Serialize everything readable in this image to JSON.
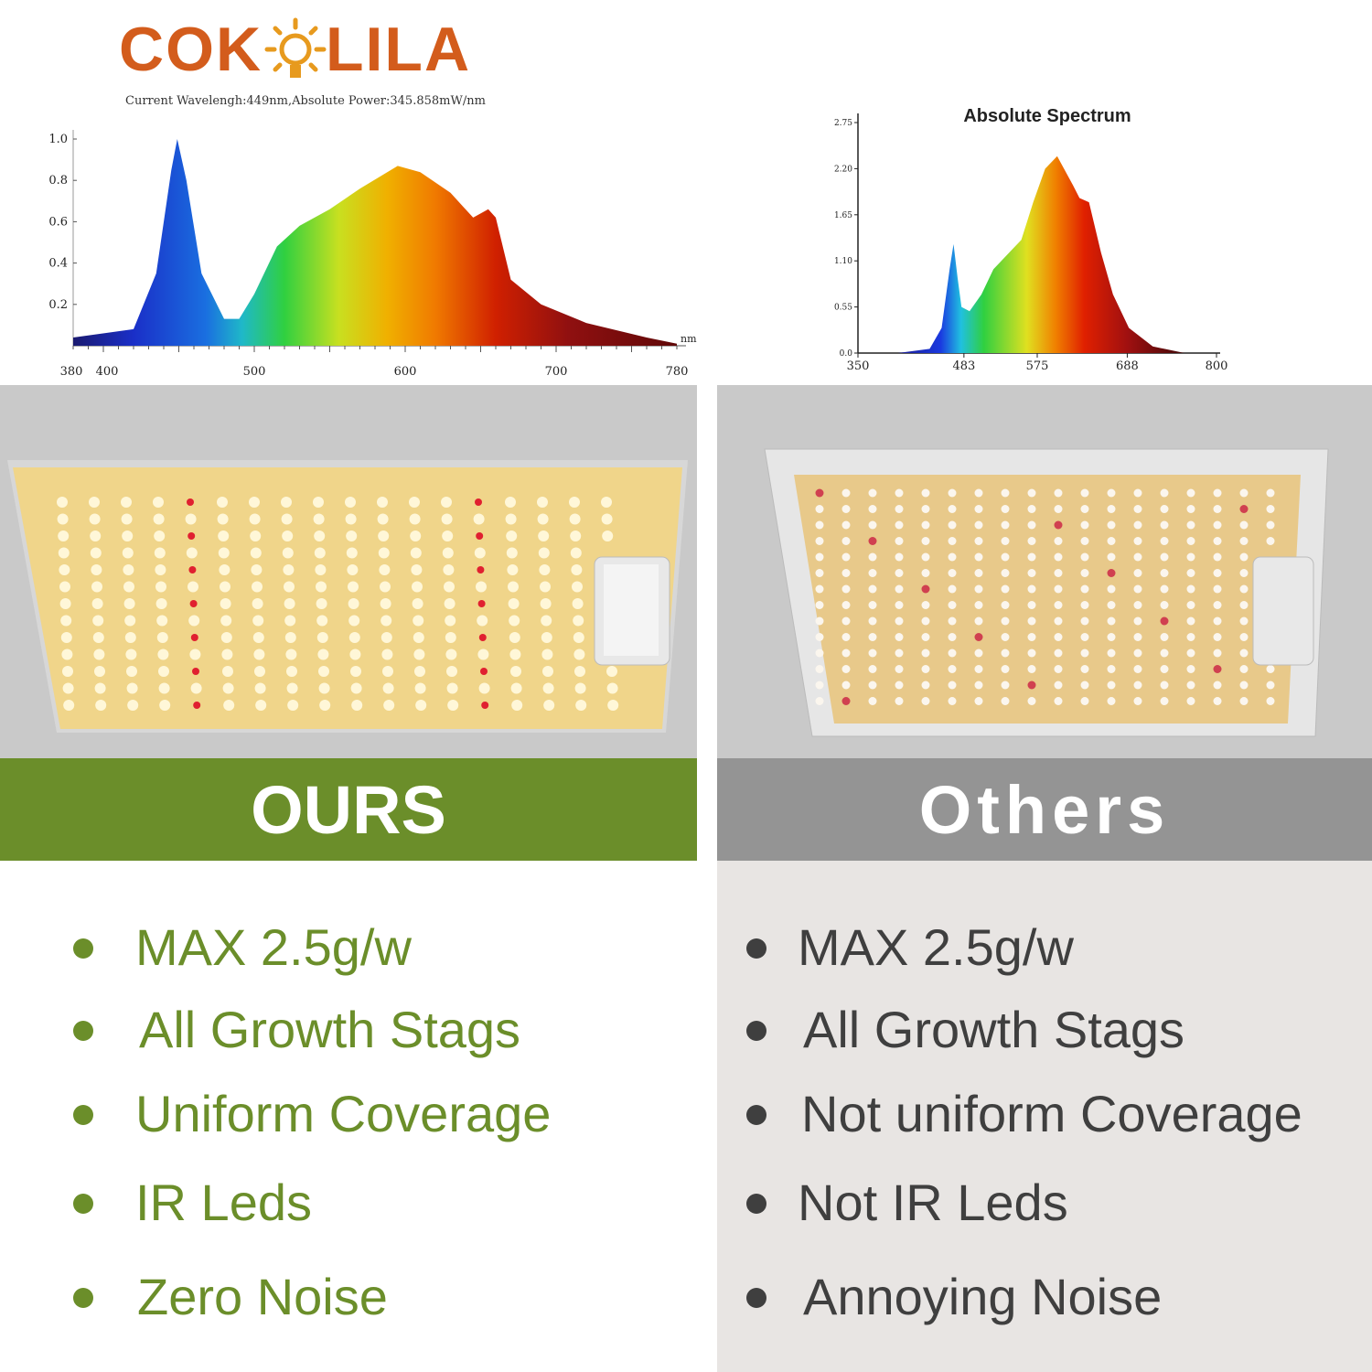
{
  "brand": {
    "name_left": "COK",
    "name_right": "LILA",
    "logo_icon": "sun-bulb-icon",
    "color": "#d35c1c"
  },
  "left_chart": {
    "subtitle": "Current Wavelengh:449nm,Absolute Power:345.858mW/nm",
    "chart_data": {
      "type": "area",
      "title": "",
      "xlabel": "nm",
      "ylabel": "",
      "x_ticks": [
        "380",
        "400",
        "500",
        "600",
        "700",
        "780"
      ],
      "y_ticks": [
        "1.0",
        "0.8",
        "0.6",
        "0.4",
        "0.2"
      ],
      "xlim": [
        380,
        780
      ],
      "ylim": [
        0,
        1.0
      ],
      "series": [
        {
          "x": [
            380,
            420,
            435,
            445,
            449,
            455,
            465,
            480,
            490,
            500,
            515,
            530,
            550,
            570,
            595,
            610,
            630,
            645,
            655,
            660,
            670,
            690,
            720,
            760,
            780
          ],
          "y": [
            0.04,
            0.08,
            0.35,
            0.85,
            1.0,
            0.8,
            0.35,
            0.13,
            0.13,
            0.25,
            0.48,
            0.58,
            0.66,
            0.76,
            0.87,
            0.84,
            0.74,
            0.62,
            0.66,
            0.62,
            0.32,
            0.2,
            0.11,
            0.04,
            0.01
          ]
        }
      ]
    }
  },
  "right_chart": {
    "chart_data": {
      "type": "area",
      "title": "Absolute Spectrum",
      "xlabel": "",
      "ylabel": "",
      "x_ticks": [
        "350",
        "483",
        "575",
        "688",
        "800"
      ],
      "y_ticks": [
        "2.75",
        "2.20",
        "1.65",
        "1.10",
        "0.55",
        "0.0"
      ],
      "xlim": [
        350,
        800
      ],
      "ylim": [
        0,
        2.75
      ],
      "series": [
        {
          "x": [
            400,
            440,
            455,
            465,
            470,
            475,
            480,
            490,
            505,
            520,
            540,
            555,
            570,
            585,
            600,
            620,
            628,
            640,
            655,
            670,
            690,
            720,
            760
          ],
          "y": [
            0.0,
            0.05,
            0.3,
            1.0,
            1.3,
            0.9,
            0.55,
            0.5,
            0.7,
            1.0,
            1.2,
            1.35,
            1.8,
            2.2,
            2.35,
            2.0,
            1.85,
            1.8,
            1.2,
            0.7,
            0.3,
            0.08,
            0.0
          ]
        }
      ]
    }
  },
  "ours": {
    "label": "OURS",
    "features": [
      "MAX 2.5g/w",
      "All Growth Stags",
      "Uniform Coverage",
      "IR Leds",
      "Zero Noise"
    ],
    "color": "#6b8e2a"
  },
  "others": {
    "label": "Others",
    "features": [
      "MAX 2.5g/w",
      "All Growth Stags",
      "Not uniform Coverage",
      "Not IR Leds",
      "Annoying Noise"
    ],
    "color": "#949494"
  }
}
